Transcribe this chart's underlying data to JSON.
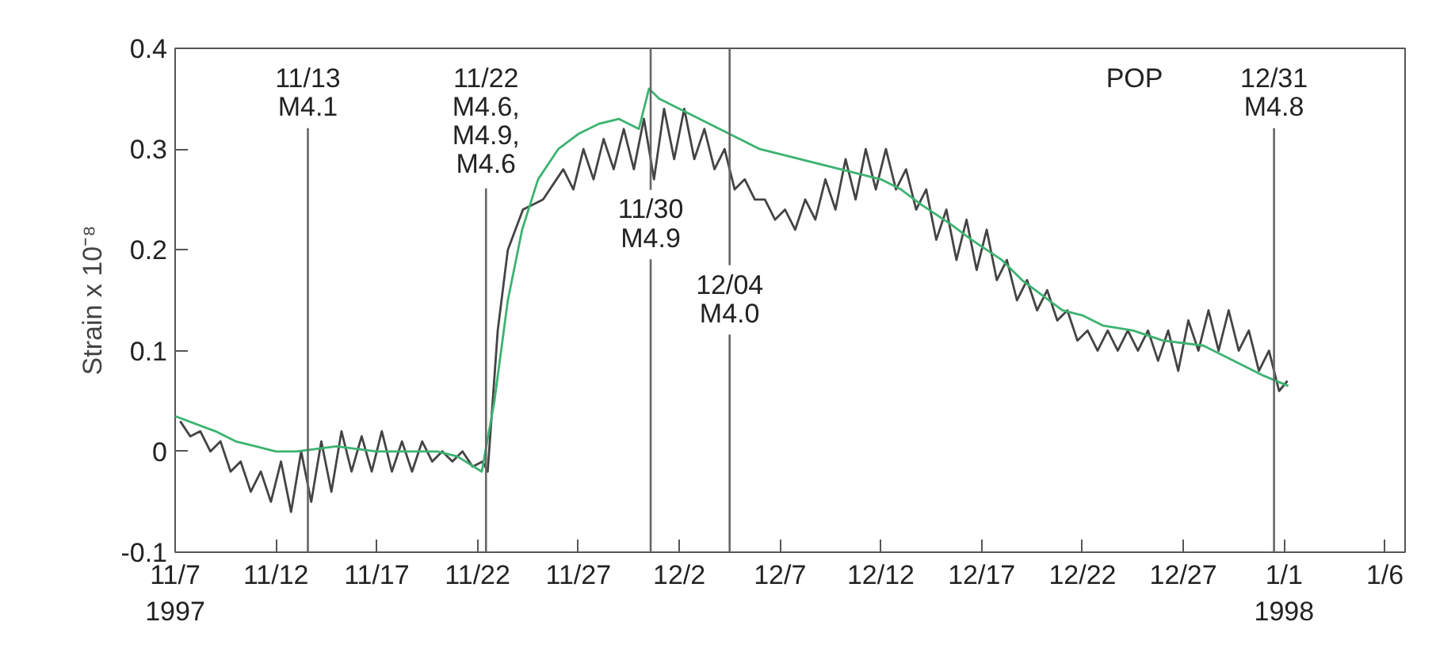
{
  "chart_data": {
    "type": "line",
    "ylabel": "Strain x 10⁻⁸",
    "annotations": [
      "POP"
    ],
    "xlim": [
      "1997-11-07",
      "1998-01-07"
    ],
    "ylim": [
      -0.1,
      0.4
    ],
    "xticks": [
      {
        "value": "1997-11-07",
        "label": "11/7\n1997"
      },
      {
        "value": "1997-11-12",
        "label": "11/12"
      },
      {
        "value": "1997-11-17",
        "label": "11/17"
      },
      {
        "value": "1997-11-22",
        "label": "11/22"
      },
      {
        "value": "1997-11-27",
        "label": "11/27"
      },
      {
        "value": "1997-12-02",
        "label": "12/2"
      },
      {
        "value": "1997-12-07",
        "label": "12/7"
      },
      {
        "value": "1997-12-12",
        "label": "12/12"
      },
      {
        "value": "1997-12-17",
        "label": "12/17"
      },
      {
        "value": "1997-12-22",
        "label": "12/22"
      },
      {
        "value": "1997-12-27",
        "label": "12/27"
      },
      {
        "value": "1998-01-01",
        "label": "1/1\n1998"
      },
      {
        "value": "1998-01-06",
        "label": "1/6"
      }
    ],
    "yticks": [
      -0.1,
      0,
      0.1,
      0.2,
      0.3,
      0.4
    ],
    "grid": false,
    "marker": "none",
    "line_style": "solid",
    "ref_lines": [
      {
        "axis": "x",
        "value": "1997-11-13T14:00",
        "label": "11/13\nM4.1"
      },
      {
        "axis": "x",
        "value": "1997-11-22T10:00",
        "label": "11/22\nM4.6,\nM4.9,\nM4.6"
      },
      {
        "axis": "x",
        "value": "1997-11-30T14:00",
        "label": "11/30\nM4.9"
      },
      {
        "axis": "x",
        "value": "1997-12-04T12:00",
        "label": "12/04\nM4.0"
      },
      {
        "axis": "x",
        "value": "1997-12-31T12:00",
        "label": "12/31\nM4.8"
      }
    ],
    "series": [
      {
        "color": "#444444",
        "x": [
          "1997-11-07T06:00",
          "1997-11-07T18:00",
          "1997-11-08T06:00",
          "1997-11-08T18:00",
          "1997-11-09T06:00",
          "1997-11-09T18:00",
          "1997-11-10T06:00",
          "1997-11-10T18:00",
          "1997-11-11T06:00",
          "1997-11-11T18:00",
          "1997-11-12T06:00",
          "1997-11-12T18:00",
          "1997-11-13T06:00",
          "1997-11-13T18:00",
          "1997-11-14T06:00",
          "1997-11-14T18:00",
          "1997-11-15T06:00",
          "1997-11-15T18:00",
          "1997-11-16T06:00",
          "1997-11-16T18:00",
          "1997-11-17T06:00",
          "1997-11-17T18:00",
          "1997-11-18T06:00",
          "1997-11-18T18:00",
          "1997-11-19T06:00",
          "1997-11-19T18:00",
          "1997-11-20T06:00",
          "1997-11-20T18:00",
          "1997-11-21T06:00",
          "1997-11-21T18:00",
          "1997-11-22T06:00",
          "1997-11-22T12:00",
          "1997-11-23T00:00",
          "1997-11-23T12:00",
          "1997-11-24T06:00",
          "1997-11-25T06:00",
          "1997-11-26T06:00",
          "1997-11-26T18:00",
          "1997-11-27T06:00",
          "1997-11-27T18:00",
          "1997-11-28T06:00",
          "1997-11-28T18:00",
          "1997-11-29T06:00",
          "1997-11-29T18:00",
          "1997-11-30T06:00",
          "1997-11-30T18:00",
          "1997-12-01T06:00",
          "1997-12-01T18:00",
          "1997-12-02T06:00",
          "1997-12-02T18:00",
          "1997-12-03T06:00",
          "1997-12-03T18:00",
          "1997-12-04T06:00",
          "1997-12-04T18:00",
          "1997-12-05T06:00",
          "1997-12-05T18:00",
          "1997-12-06T06:00",
          "1997-12-06T18:00",
          "1997-12-07T06:00",
          "1997-12-07T18:00",
          "1997-12-08T06:00",
          "1997-12-08T18:00",
          "1997-12-09T06:00",
          "1997-12-09T18:00",
          "1997-12-10T06:00",
          "1997-12-10T18:00",
          "1997-12-11T06:00",
          "1997-12-11T18:00",
          "1997-12-12T06:00",
          "1997-12-12T18:00",
          "1997-12-13T06:00",
          "1997-12-13T18:00",
          "1997-12-14T06:00",
          "1997-12-14T18:00",
          "1997-12-15T06:00",
          "1997-12-15T18:00",
          "1997-12-16T06:00",
          "1997-12-16T18:00",
          "1997-12-17T06:00",
          "1997-12-17T18:00",
          "1997-12-18T06:00",
          "1997-12-18T18:00",
          "1997-12-19T06:00",
          "1997-12-19T18:00",
          "1997-12-20T06:00",
          "1997-12-20T18:00",
          "1997-12-21T06:00",
          "1997-12-21T18:00",
          "1997-12-22T06:00",
          "1997-12-22T18:00",
          "1997-12-23T06:00",
          "1997-12-23T18:00",
          "1997-12-24T06:00",
          "1997-12-24T18:00",
          "1997-12-25T06:00",
          "1997-12-25T18:00",
          "1997-12-26T06:00",
          "1997-12-26T18:00",
          "1997-12-27T06:00",
          "1997-12-27T18:00",
          "1997-12-28T06:00",
          "1997-12-28T18:00",
          "1997-12-29T06:00",
          "1997-12-29T18:00",
          "1997-12-30T06:00",
          "1997-12-30T18:00",
          "1997-12-31T06:00",
          "1997-12-31T18:00",
          "1998-01-01T04:00"
        ],
        "values": [
          0.03,
          0.015,
          0.02,
          0.0,
          0.01,
          -0.02,
          -0.01,
          -0.04,
          -0.02,
          -0.05,
          -0.01,
          -0.06,
          0.0,
          -0.05,
          0.01,
          -0.04,
          0.02,
          -0.02,
          0.015,
          -0.02,
          0.02,
          -0.02,
          0.01,
          -0.02,
          0.01,
          -0.01,
          0.0,
          -0.01,
          0.0,
          -0.015,
          -0.01,
          -0.02,
          0.12,
          0.2,
          0.24,
          0.25,
          0.28,
          0.26,
          0.3,
          0.27,
          0.31,
          0.28,
          0.32,
          0.28,
          0.33,
          0.27,
          0.34,
          0.29,
          0.34,
          0.29,
          0.32,
          0.28,
          0.3,
          0.26,
          0.27,
          0.25,
          0.25,
          0.23,
          0.24,
          0.22,
          0.25,
          0.23,
          0.27,
          0.24,
          0.29,
          0.25,
          0.3,
          0.26,
          0.3,
          0.26,
          0.28,
          0.24,
          0.26,
          0.21,
          0.24,
          0.19,
          0.23,
          0.18,
          0.22,
          0.17,
          0.19,
          0.15,
          0.17,
          0.14,
          0.16,
          0.13,
          0.14,
          0.11,
          0.12,
          0.1,
          0.12,
          0.1,
          0.12,
          0.1,
          0.12,
          0.09,
          0.12,
          0.08,
          0.13,
          0.1,
          0.14,
          0.1,
          0.14,
          0.1,
          0.12,
          0.08,
          0.1,
          0.06,
          0.07
        ]
      },
      {
        "color": "#3cb371",
        "x": [
          "1997-11-07",
          "1997-11-09",
          "1997-11-10",
          "1997-11-11",
          "1997-11-12",
          "1997-11-13",
          "1997-11-15",
          "1997-11-17",
          "1997-11-20",
          "1997-11-21",
          "1997-11-22T05:00",
          "1997-11-22T20:00",
          "1997-11-23T12:00",
          "1997-11-24T05:00",
          "1997-11-25",
          "1997-11-26",
          "1997-11-27",
          "1997-11-28",
          "1997-11-29",
          "1997-11-30",
          "1997-11-30T12:00",
          "1997-12-01",
          "1997-12-02",
          "1997-12-03",
          "1997-12-04",
          "1997-12-05",
          "1997-12-06",
          "1997-12-08",
          "1997-12-10",
          "1997-12-12",
          "1997-12-13",
          "1997-12-14",
          "1997-12-15T12:00",
          "1997-12-16T12:00",
          "1997-12-18",
          "1997-12-19",
          "1997-12-20",
          "1997-12-21",
          "1997-12-22",
          "1997-12-23",
          "1997-12-24T12:00",
          "1997-12-26",
          "1997-12-28",
          "1997-12-29",
          "1997-12-30",
          "1997-12-31",
          "1998-01-01T05:00"
        ],
        "values": [
          0.035,
          0.02,
          0.01,
          0.005,
          0.0,
          0.0,
          0.005,
          0.0,
          0.0,
          -0.005,
          -0.02,
          0.05,
          0.15,
          0.22,
          0.27,
          0.3,
          0.315,
          0.325,
          0.33,
          0.32,
          0.36,
          0.35,
          0.34,
          0.33,
          0.32,
          0.31,
          0.3,
          0.29,
          0.28,
          0.27,
          0.26,
          0.245,
          0.225,
          0.21,
          0.19,
          0.17,
          0.155,
          0.14,
          0.135,
          0.125,
          0.12,
          0.11,
          0.105,
          0.095,
          0.085,
          0.075,
          0.065
        ]
      }
    ]
  }
}
